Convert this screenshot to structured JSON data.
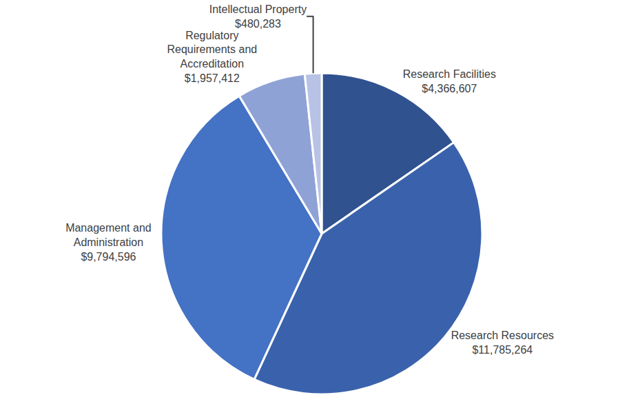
{
  "chart_data": {
    "type": "pie",
    "categories": [
      "Research Facilities",
      "Research Resources",
      "Management and Administration",
      "Regulatory Requirements and Accreditation",
      "Intellectual Property"
    ],
    "values": [
      4366607,
      11785264,
      9794596,
      1957412,
      480283
    ],
    "value_labels": [
      "$4,366,607",
      "$11,785,264",
      "$9,794,596",
      "$1,957,412",
      "$480,283"
    ],
    "colors": [
      "#30528f",
      "#3a62ac",
      "#4472c4",
      "#8fa2d5",
      "#b7c2e5"
    ],
    "data_labels": true
  }
}
